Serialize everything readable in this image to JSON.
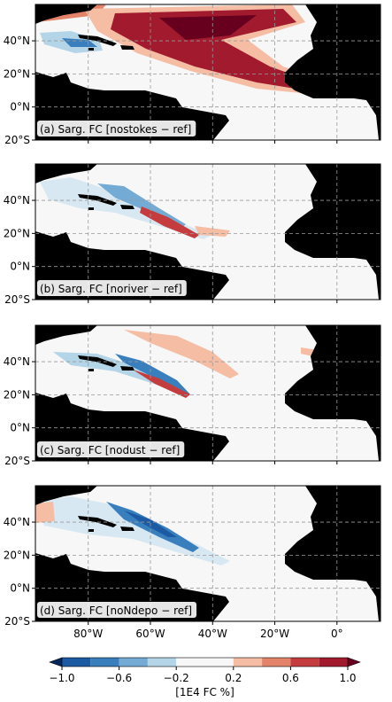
{
  "panels": [
    {
      "label": "(a) Sarg. FC [nostokes − ref]"
    },
    {
      "label": "(b) Sarg. FC [noriver − ref]"
    },
    {
      "label": "(c) Sarg. FC [nodust − ref]"
    },
    {
      "label": "(d) Sarg. FC [noNdepo − ref]"
    }
  ],
  "lat_range": [
    -20,
    62
  ],
  "lon_range": [
    -97,
    14
  ],
  "lat_ticks": [
    {
      "value": 40,
      "label": "40°N"
    },
    {
      "value": 20,
      "label": "20°N"
    },
    {
      "value": 0,
      "label": "0°N"
    },
    {
      "value": -20,
      "label": "20°S"
    }
  ],
  "lon_ticks": [
    {
      "value": -80,
      "label": "80°W"
    },
    {
      "value": -60,
      "label": "60°W"
    },
    {
      "value": -40,
      "label": "40°W"
    },
    {
      "value": -20,
      "label": "20°W"
    },
    {
      "value": 0,
      "label": "0°"
    }
  ],
  "colorbar": {
    "label": "[1E4 FC %]",
    "levels": [
      -1,
      -0.8,
      -0.6,
      -0.4,
      -0.2,
      0,
      0.2,
      0.4,
      0.6,
      0.8,
      1
    ],
    "colors": [
      "#1c5aa3",
      "#3a7fbd",
      "#73abd4",
      "#b4d5e8",
      "#f7f7f7",
      "#f7f7f7",
      "#f5bda3",
      "#e2836a",
      "#c53c3f",
      "#a11a2e"
    ],
    "under_color": "#07285a",
    "over_color": "#67001f",
    "ticks": [
      {
        "value": -1,
        "label": "−1.0"
      },
      {
        "value": -0.6,
        "label": "−0.6"
      },
      {
        "value": -0.2,
        "label": "−0.2"
      },
      0.2,
      0.6,
      {
        "value": 1,
        "label": "1.0"
      }
    ]
  }
}
